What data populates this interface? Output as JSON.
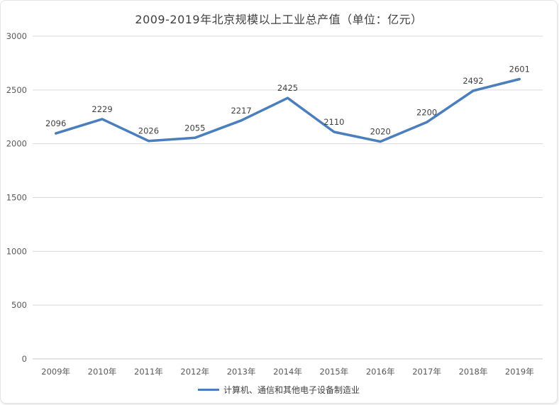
{
  "chart_data": {
    "type": "line",
    "title": "2009-2019年北京规模以上工业总产值（单位：亿元）",
    "categories": [
      "2009年",
      "2010年",
      "2011年",
      "2012年",
      "2013年",
      "2014年",
      "2015年",
      "2016年",
      "2017年",
      "2018年",
      "2019年"
    ],
    "series": [
      {
        "name": "计算机、通信和其他电子设备制造业",
        "values": [
          2096,
          2229,
          2026,
          2055,
          2217,
          2425,
          2110,
          2020,
          2200,
          2492,
          2601
        ],
        "color": "#4a7ebc"
      }
    ],
    "xlabel": "",
    "ylabel": "",
    "ylim": [
      0,
      3000
    ],
    "ytick_interval": 500,
    "ytick_labels": [
      "0",
      "500",
      "1000",
      "1500",
      "2000",
      "2500",
      "3000"
    ],
    "grid": true,
    "data_labels": true,
    "legend_position": "bottom"
  },
  "colors": {
    "line": "#4a7ebc",
    "gridline": "#d9d9d9",
    "axis_line": "#c8c8c8",
    "tick_label": "#595959",
    "data_label": "#404040",
    "title": "#404040",
    "card_background": "#ffffff"
  }
}
